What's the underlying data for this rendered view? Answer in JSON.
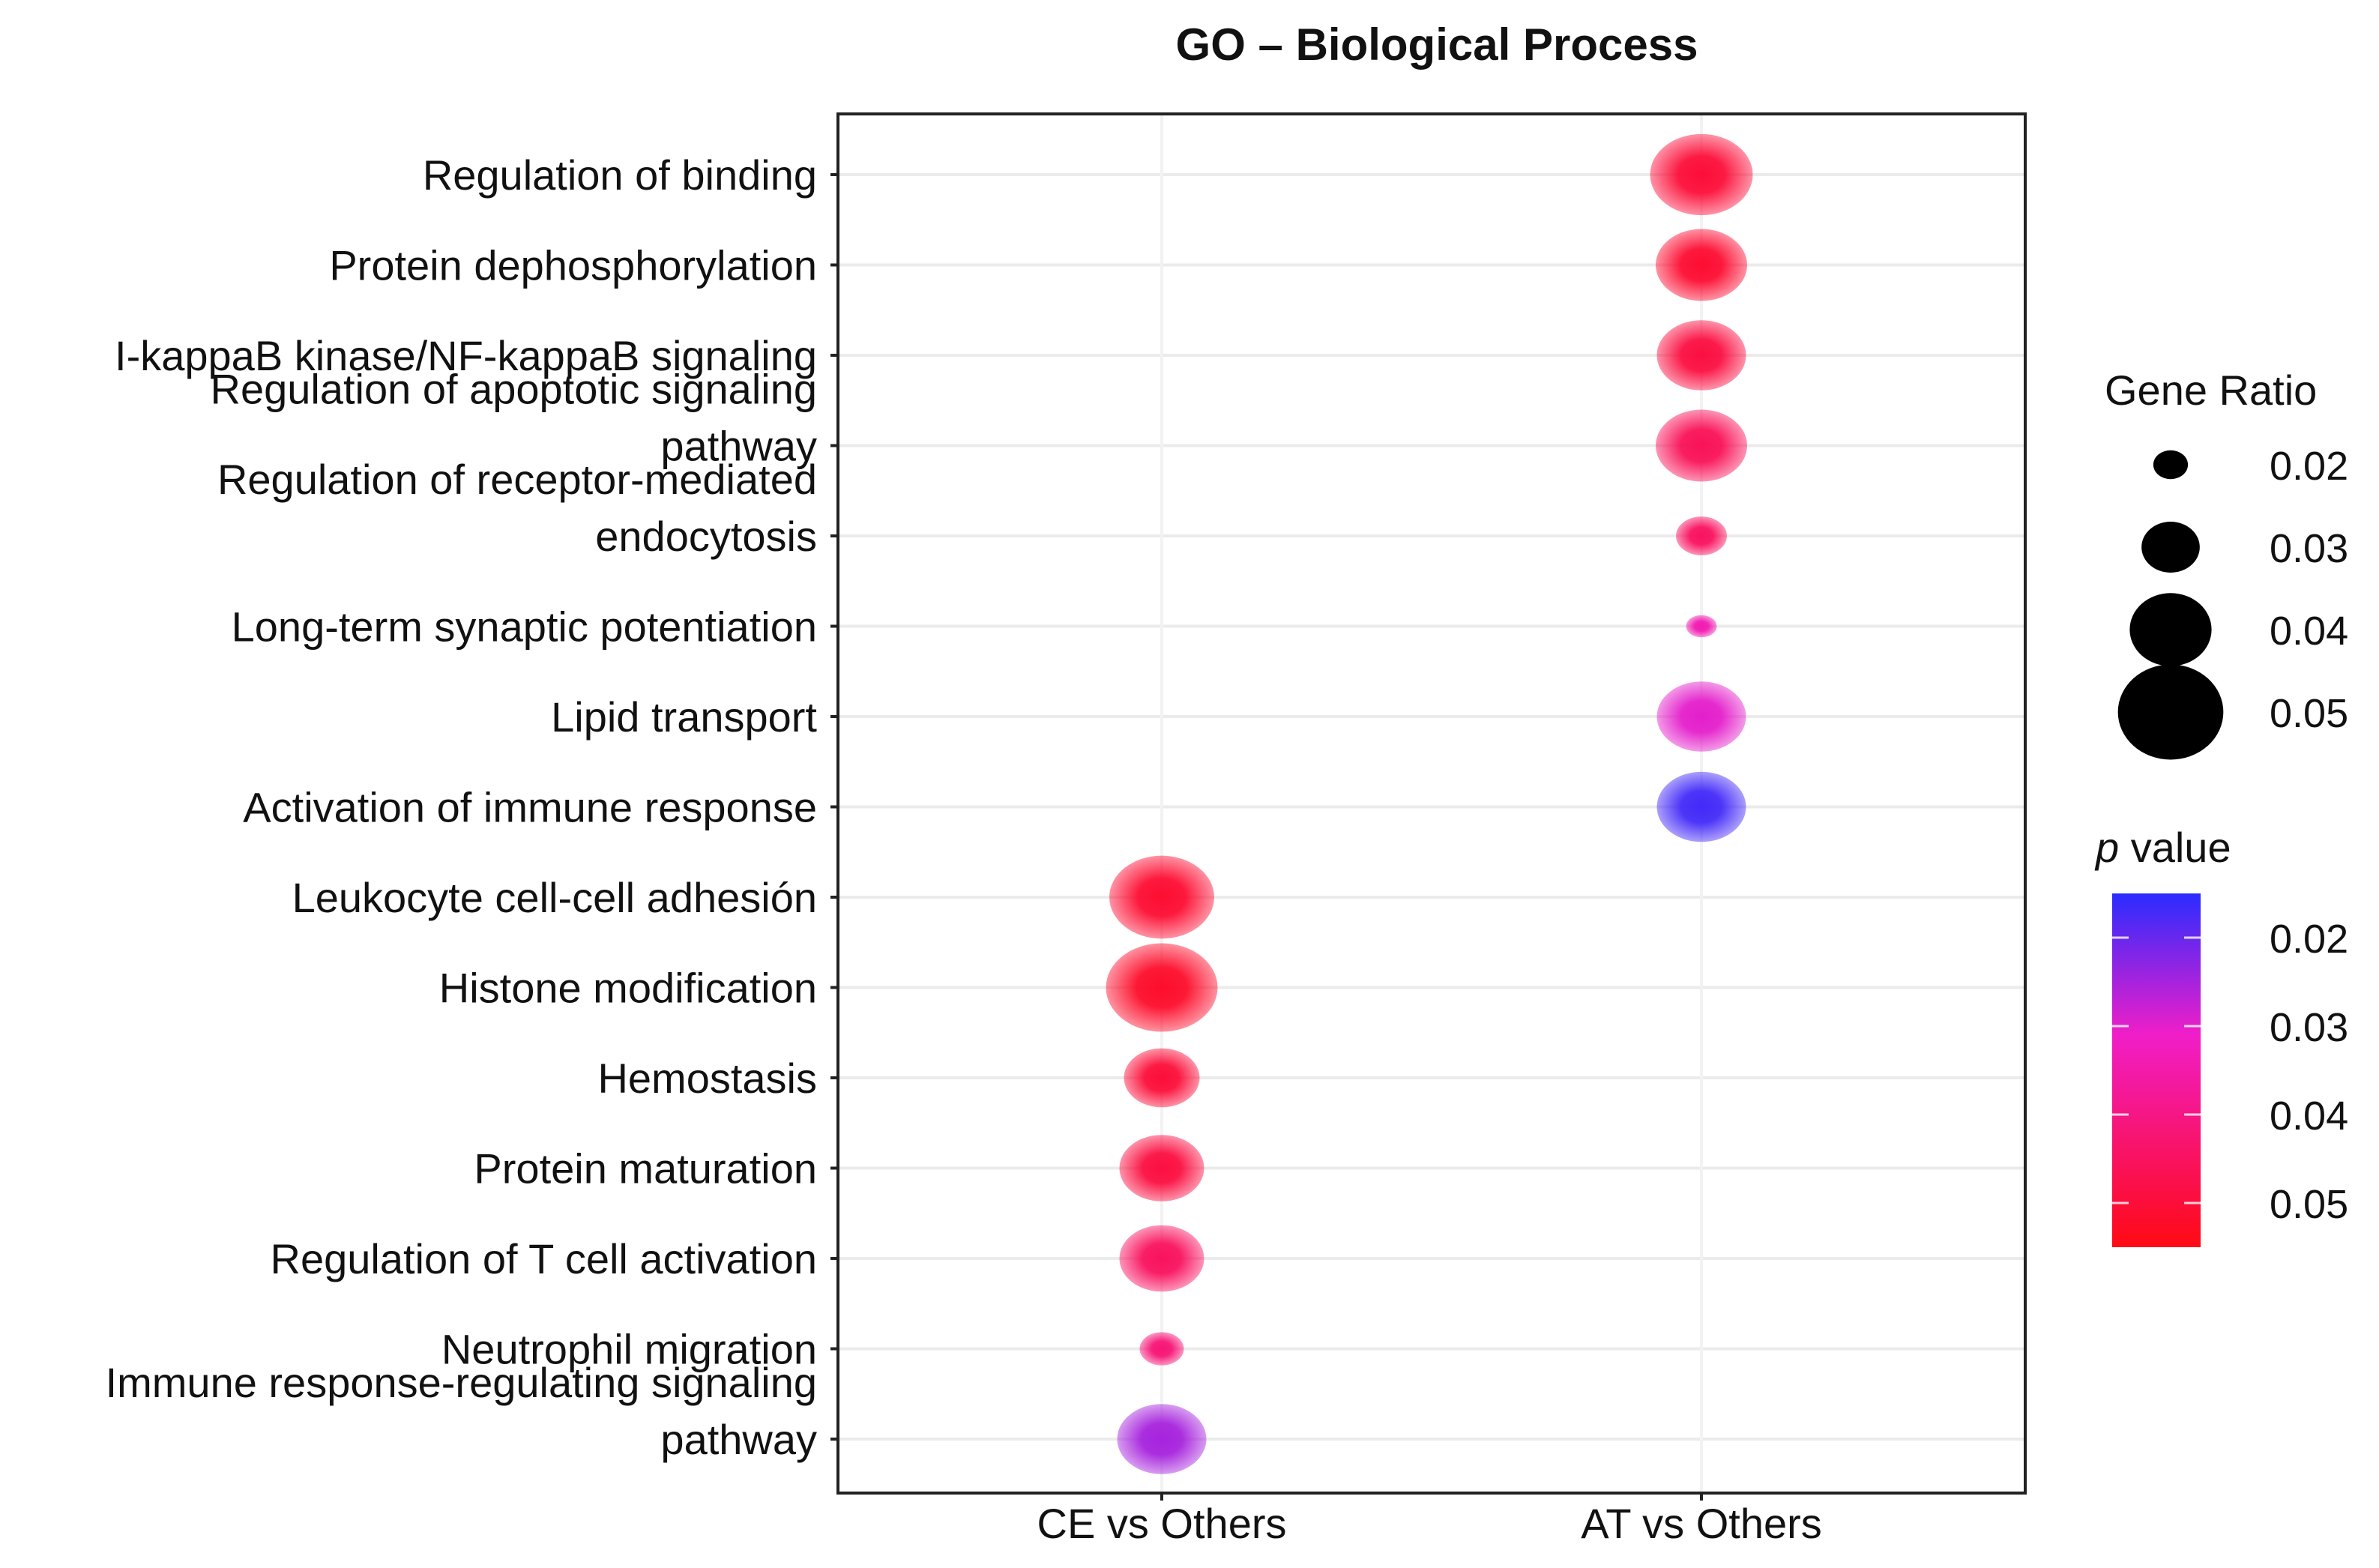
{
  "chart_data": {
    "type": "scatter",
    "subtype": "dot-plot",
    "title": "GO – Biological Process",
    "xlabel": "",
    "ylabel": "",
    "categories_x": [
      "CE vs Others",
      "AT vs Others"
    ],
    "categories_y": [
      [
        "Regulation of binding"
      ],
      [
        "Protein dephosphorylation"
      ],
      [
        "I-kappaB kinase/NF-kappaB signaling"
      ],
      [
        "Regulation of apoptotic signaling",
        "pathway"
      ],
      [
        "Regulation of receptor-mediated",
        "endocytosis"
      ],
      [
        "Long-term synaptic potentiation"
      ],
      [
        "Lipid transport"
      ],
      [
        "Activation of immune response"
      ],
      [
        "Leukocyte cell-cell adhesión"
      ],
      [
        "Histone modification"
      ],
      [
        "Hemostasis"
      ],
      [
        "Protein maturation"
      ],
      [
        "Regulation of T cell activation"
      ],
      [
        "Neutrophil migration"
      ],
      [
        "Immune response-regulating signaling",
        "pathway"
      ]
    ],
    "points": [
      {
        "x": 1,
        "y": 0,
        "gene_ratio": 0.051,
        "p_value": 0.05
      },
      {
        "x": 1,
        "y": 1,
        "gene_ratio": 0.046,
        "p_value": 0.051
      },
      {
        "x": 1,
        "y": 2,
        "gene_ratio": 0.045,
        "p_value": 0.049
      },
      {
        "x": 1,
        "y": 3,
        "gene_ratio": 0.046,
        "p_value": 0.046
      },
      {
        "x": 1,
        "y": 4,
        "gene_ratio": 0.028,
        "p_value": 0.045
      },
      {
        "x": 1,
        "y": 5,
        "gene_ratio": 0.019,
        "p_value": 0.034
      },
      {
        "x": 1,
        "y": 6,
        "gene_ratio": 0.045,
        "p_value": 0.03
      },
      {
        "x": 1,
        "y": 7,
        "gene_ratio": 0.045,
        "p_value": 0.017
      },
      {
        "x": 0,
        "y": 8,
        "gene_ratio": 0.052,
        "p_value": 0.051
      },
      {
        "x": 0,
        "y": 9,
        "gene_ratio": 0.055,
        "p_value": 0.052
      },
      {
        "x": 0,
        "y": 10,
        "gene_ratio": 0.039,
        "p_value": 0.05
      },
      {
        "x": 0,
        "y": 11,
        "gene_ratio": 0.043,
        "p_value": 0.049
      },
      {
        "x": 0,
        "y": 12,
        "gene_ratio": 0.043,
        "p_value": 0.045
      },
      {
        "x": 0,
        "y": 13,
        "gene_ratio": 0.025,
        "p_value": 0.042
      },
      {
        "x": 0,
        "y": 14,
        "gene_ratio": 0.045,
        "p_value": 0.025
      }
    ],
    "legend_size": {
      "title": "Gene Ratio",
      "breaks": [
        0.02,
        0.03,
        0.04,
        0.05
      ],
      "labels": [
        "0.02",
        "0.03",
        "0.04",
        "0.05"
      ]
    },
    "legend_color": {
      "title_italic": "p",
      "title_rest": " value",
      "breaks": [
        0.02,
        0.03,
        0.04,
        0.05
      ],
      "labels": [
        "0.02",
        "0.03",
        "0.04",
        "0.05"
      ],
      "range": [
        0.015,
        0.055
      ],
      "low_color": "#2a2cff",
      "mid_color": "#f01ec8",
      "high_color": "#ff0a14"
    },
    "grid": true,
    "legend_position": "right"
  }
}
